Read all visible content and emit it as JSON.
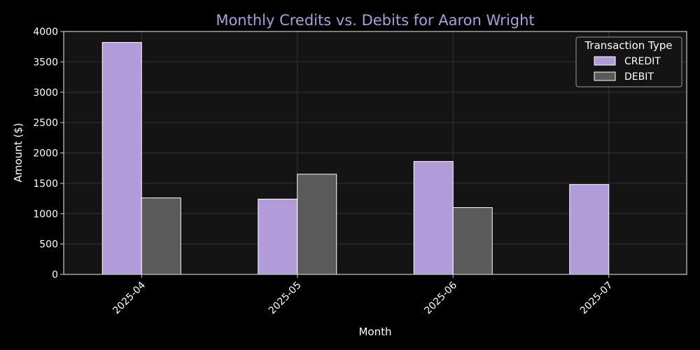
{
  "chart_data": {
    "type": "bar",
    "title": "Monthly Credits vs. Debits for Aaron Wright",
    "xlabel": "Month",
    "ylabel": "Amount ($)",
    "categories": [
      "2025-04",
      "2025-05",
      "2025-06",
      "2025-07"
    ],
    "series": [
      {
        "name": "CREDIT",
        "values": [
          3820,
          1240,
          1860,
          1480
        ],
        "color": "#b19cd9"
      },
      {
        "name": "DEBIT",
        "values": [
          1260,
          1650,
          1100,
          0
        ],
        "color": "#5a5a5a"
      }
    ],
    "ylim": [
      0,
      4000
    ],
    "yticks": [
      0,
      500,
      1000,
      1500,
      2000,
      2500,
      3000,
      3500,
      4000
    ],
    "grid": true,
    "legend": {
      "title": "Transaction Type",
      "placement": "top-right"
    },
    "colors": {
      "background": "#000000",
      "plot_background": "#141414",
      "title": "#b19cd9",
      "text": "#ffffff",
      "grid": "#333333",
      "axes": "#cccccc"
    }
  }
}
